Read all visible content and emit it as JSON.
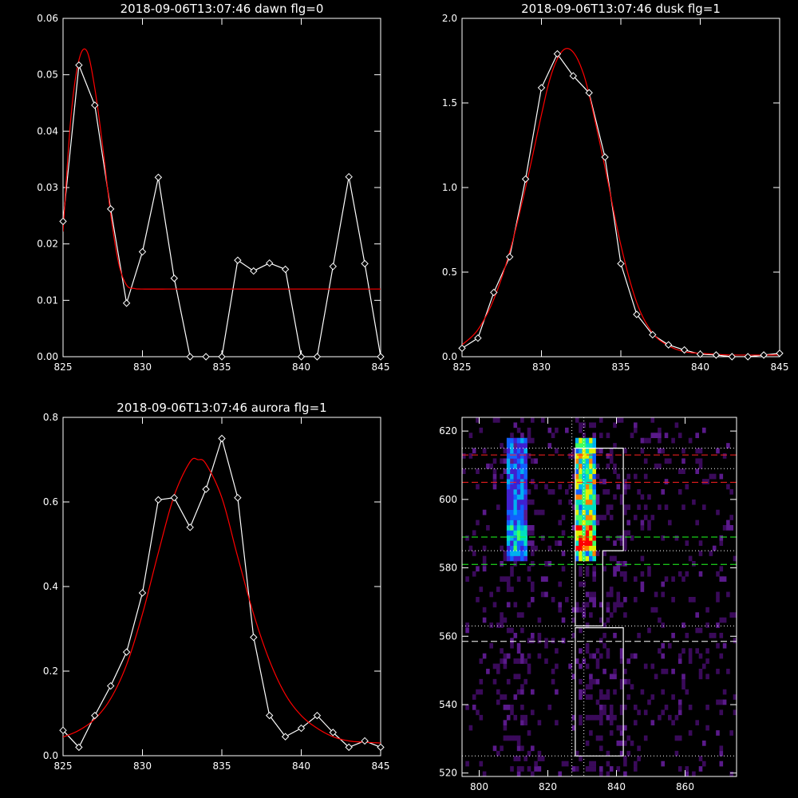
{
  "chart_data": [
    {
      "type": "line",
      "title": "2018-09-06T13:07:46 dawn flg=0",
      "xlim": [
        825,
        845
      ],
      "ylim": [
        0,
        0.06
      ],
      "xticks": [
        "825",
        "830",
        "835",
        "840",
        "845"
      ],
      "yticks": [
        "0.00",
        "0.01",
        "0.02",
        "0.03",
        "0.04",
        "0.05",
        "0.06"
      ],
      "series": [
        {
          "color": "#ffffff",
          "marker": "diamond",
          "x": [
            825,
            826,
            827,
            828,
            829,
            830,
            831,
            832,
            833,
            834,
            835,
            836,
            837,
            838,
            839,
            840,
            841,
            842,
            843,
            844,
            845
          ],
          "y": [
            0.024,
            0.0517,
            0.0446,
            0.0262,
            0.0095,
            0.0186,
            0.0318,
            0.0139,
            0.0,
            0.0,
            0.0,
            0.0171,
            0.0152,
            0.0166,
            0.0155,
            0.0,
            0.0,
            0.016,
            0.0319,
            0.0165,
            0.0
          ]
        },
        {
          "color": "#ff0000",
          "x": [
            825,
            825.5,
            826,
            826.5,
            827,
            827.5,
            828,
            828.5,
            829,
            829.5,
            830,
            832,
            835,
            840,
            845
          ],
          "y": [
            0.0222,
            0.0426,
            0.0526,
            0.0542,
            0.0476,
            0.0372,
            0.0253,
            0.0166,
            0.0127,
            0.0121,
            0.012,
            0.012,
            0.012,
            0.012,
            0.012
          ]
        }
      ]
    },
    {
      "type": "line",
      "title": "2018-09-06T13:07:46 dusk flg=1",
      "xlim": [
        825,
        845
      ],
      "ylim": [
        0,
        2.0
      ],
      "xticks": [
        "825",
        "830",
        "835",
        "840",
        "845"
      ],
      "yticks": [
        "0.0",
        "0.5",
        "1.0",
        "1.5",
        "2.0"
      ],
      "series": [
        {
          "color": "#ffffff",
          "marker": "diamond",
          "x": [
            825,
            826,
            827,
            828,
            829,
            830,
            831,
            832,
            833,
            834,
            835,
            836,
            837,
            838,
            839,
            840,
            841,
            842,
            843,
            844,
            845
          ],
          "y": [
            0.05,
            0.11,
            0.38,
            0.59,
            1.05,
            1.59,
            1.79,
            1.66,
            1.56,
            1.18,
            0.55,
            0.25,
            0.13,
            0.07,
            0.04,
            0.015,
            0.01,
            0.0,
            0.0,
            0.01,
            0.02
          ]
        },
        {
          "color": "#ff0000",
          "x": [
            825,
            826,
            827,
            828,
            829,
            830,
            830.5,
            831,
            831.5,
            832,
            832.5,
            833,
            834,
            835,
            836,
            837,
            838,
            839,
            840,
            841,
            842,
            845
          ],
          "y": [
            0.07,
            0.16,
            0.34,
            0.62,
            1.0,
            1.43,
            1.63,
            1.76,
            1.82,
            1.8,
            1.71,
            1.55,
            1.12,
            0.66,
            0.32,
            0.14,
            0.065,
            0.03,
            0.02,
            0.015,
            0.01,
            0.01
          ]
        }
      ]
    },
    {
      "type": "line",
      "title": "2018-09-06T13:07:46 aurora flg=1",
      "xlim": [
        825,
        845
      ],
      "ylim": [
        0,
        0.8
      ],
      "xticks": [
        "825",
        "830",
        "835",
        "840",
        "845"
      ],
      "yticks": [
        "0.0",
        "0.2",
        "0.4",
        "0.6",
        "0.8"
      ],
      "series": [
        {
          "color": "#ffffff",
          "marker": "diamond",
          "x": [
            825,
            826,
            827,
            828,
            829,
            830,
            831,
            832,
            833,
            834,
            835,
            836,
            837,
            838,
            839,
            840,
            841,
            842,
            843,
            844,
            845
          ],
          "y": [
            0.06,
            0.02,
            0.095,
            0.165,
            0.245,
            0.385,
            0.605,
            0.61,
            0.54,
            0.63,
            0.75,
            0.61,
            0.28,
            0.095,
            0.045,
            0.065,
            0.095,
            0.055,
            0.02,
            0.035,
            0.02
          ]
        },
        {
          "color": "#ff0000",
          "x": [
            825,
            826,
            827,
            828,
            829,
            830,
            831,
            832,
            833,
            833.5,
            834,
            835,
            836,
            837,
            838,
            839,
            840,
            841,
            842,
            843,
            844,
            845
          ],
          "y": [
            0.044,
            0.06,
            0.087,
            0.135,
            0.215,
            0.335,
            0.48,
            0.615,
            0.695,
            0.7,
            0.69,
            0.61,
            0.47,
            0.335,
            0.225,
            0.145,
            0.095,
            0.065,
            0.045,
            0.035,
            0.032,
            0.03
          ]
        }
      ]
    },
    {
      "type": "heatmap",
      "xlim": [
        795,
        875
      ],
      "ylim": [
        519,
        624
      ],
      "xticks": [
        "800",
        "820",
        "840",
        "860"
      ],
      "yticks": [
        "520",
        "540",
        "560",
        "580",
        "600",
        "620"
      ],
      "colormap": [
        "#3a0a5a",
        "#5a1a8a",
        "#4020d0",
        "#1060ff",
        "#00b0f0",
        "#00e0c0",
        "#40ff60",
        "#e0f000",
        "#ff8000",
        "#ff0000"
      ],
      "bright_columns": [
        {
          "x": [
            808,
            814
          ],
          "y": [
            582,
            618
          ],
          "peak": 0.55
        },
        {
          "x": [
            828,
            834
          ],
          "y": [
            581,
            618
          ],
          "peak": 1.0
        }
      ],
      "boxes": [
        {
          "polygon": [
            [
              828,
              615
            ],
            [
              842,
              615
            ],
            [
              842,
              585
            ],
            [
              836,
              585
            ],
            [
              836,
              563
            ],
            [
              828,
              563
            ]
          ]
        },
        {
          "polygon": [
            [
              828,
              562.5
            ],
            [
              842,
              562.5
            ],
            [
              842,
              525
            ],
            [
              828,
              525
            ]
          ]
        }
      ],
      "hlines": [
        {
          "y": 613,
          "color": "#ff2020",
          "style": "dashed"
        },
        {
          "y": 605,
          "color": "#ff2020",
          "style": "dashed"
        },
        {
          "y": 589,
          "color": "#20ff20",
          "style": "dashed"
        },
        {
          "y": 581,
          "color": "#20ff20",
          "style": "dashed"
        },
        {
          "y": 558.5,
          "color": "#ffffff",
          "style": "dashed"
        },
        {
          "y": 615,
          "color": "#ffffff",
          "style": "dotted"
        },
        {
          "y": 609,
          "color": "#ffffff",
          "style": "dotted"
        },
        {
          "y": 585,
          "color": "#ffffff",
          "style": "dotted"
        },
        {
          "y": 563,
          "color": "#ffffff",
          "style": "dotted"
        },
        {
          "y": 525,
          "color": "#ffffff",
          "style": "dotted"
        }
      ],
      "vlines": [
        {
          "x": 827,
          "color": "#ffffff",
          "style": "dotted"
        },
        {
          "x": 830.5,
          "color": "#ffffff",
          "style": "dotted"
        }
      ]
    }
  ]
}
